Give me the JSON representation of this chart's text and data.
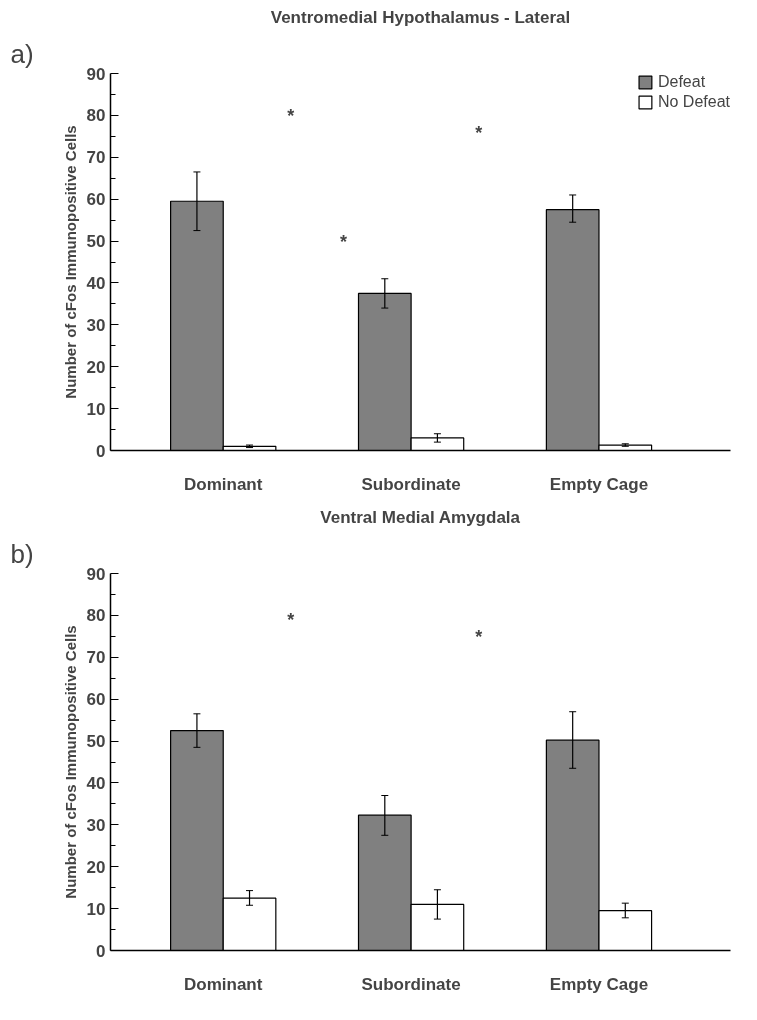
{
  "chart_data": [
    {
      "type": "bar",
      "title": "Ventromedial Hypothalamus - Lateral",
      "ylabel": "Number of cFos Immunopositive Cells",
      "categories": [
        "Dominant",
        "Subordinate",
        "Empty Cage"
      ],
      "ylim": [
        0,
        90
      ],
      "yticks": [
        0,
        10,
        20,
        30,
        40,
        50,
        60,
        70,
        80,
        90
      ],
      "legend": "top right",
      "annotations": [
        "a)",
        "*",
        "*",
        "*"
      ],
      "series": [
        {
          "name": "Defeat",
          "color": "#808080",
          "values": [
            59.5,
            37.5,
            57.5
          ],
          "errors": [
            [
              52.5,
              66.5
            ],
            [
              34,
              41
            ],
            [
              54.5,
              61
            ]
          ]
        },
        {
          "name": "No Defeat",
          "color": "#ffffff",
          "values": [
            1,
            3,
            1.3
          ],
          "errors": [
            [
              0.7,
              1.3
            ],
            [
              2,
              4
            ],
            [
              1,
              1.6
            ]
          ]
        }
      ]
    },
    {
      "type": "bar",
      "title": "Ventral Medial Amygdala",
      "ylabel": "Number of cFos Immunopositive Cells",
      "categories": [
        "Dominant",
        "Subordinate",
        "Empty Cage"
      ],
      "ylim": [
        0,
        90
      ],
      "yticks": [
        0,
        10,
        20,
        30,
        40,
        50,
        60,
        70,
        80,
        90
      ],
      "annotations": [
        "b)",
        "*",
        "*"
      ],
      "series": [
        {
          "color": "#808080",
          "values": [
            52.5,
            32.3,
            50.2
          ],
          "errors": [
            [
              48.5,
              56.5
            ],
            [
              27.5,
              37
            ],
            [
              43.5,
              57
            ]
          ]
        },
        {
          "color": "#ffffff",
          "values": [
            12.5,
            11,
            9.5
          ],
          "errors": [
            [
              10.8,
              14.3
            ],
            [
              7.5,
              14.5
            ],
            [
              7.8,
              11.3
            ]
          ]
        }
      ]
    }
  ]
}
